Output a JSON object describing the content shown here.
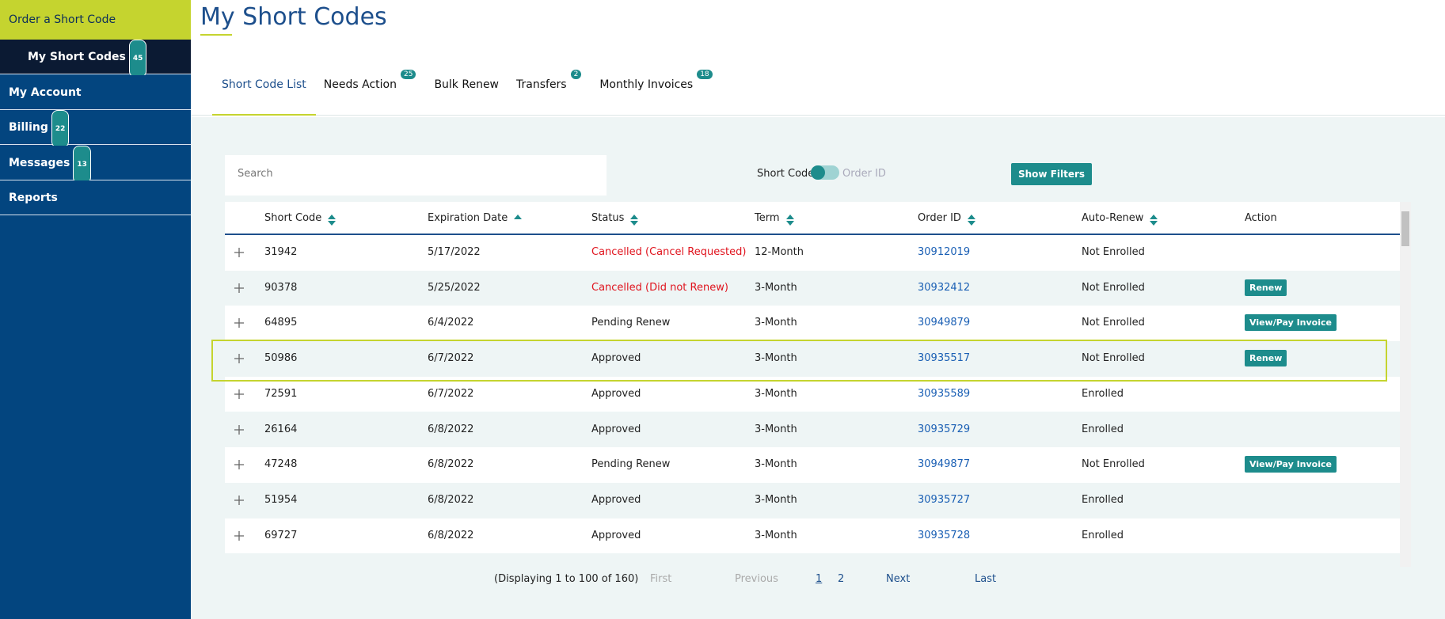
{
  "sidebar": {
    "order_button": "Order a Short Code",
    "items": [
      {
        "label": "My Short Codes",
        "badge": "45",
        "active": true
      },
      {
        "label": "My Account"
      },
      {
        "label": "Billing",
        "badge": "22"
      },
      {
        "label": "Messages",
        "badge": "13"
      },
      {
        "label": "Reports"
      }
    ]
  },
  "header": {
    "title": "My Short Codes"
  },
  "tabs": [
    {
      "label": "Short Code List",
      "active": true
    },
    {
      "label": "Needs Action",
      "badge": "25"
    },
    {
      "label": "Bulk Renew"
    },
    {
      "label": "Transfers",
      "badge": "2"
    },
    {
      "label": "Monthly Invoices",
      "badge": "18"
    }
  ],
  "toolbar": {
    "search_placeholder": "Search",
    "toggle_left": "Short Code",
    "toggle_right": "Order ID",
    "filters_button": "Show Filters"
  },
  "table": {
    "columns": [
      "Short Code",
      "Expiration Date",
      "Status",
      "Term",
      "Order ID",
      "Auto-Renew",
      "Action"
    ],
    "rows": [
      {
        "short_code": "31942",
        "expiration": "5/17/2022",
        "status": "Cancelled (Cancel Requested)",
        "alert": true,
        "term": "12-Month",
        "order_id": "30912019",
        "auto_renew": "Not Enrolled"
      },
      {
        "short_code": "90378",
        "expiration": "5/25/2022",
        "status": "Cancelled (Did not Renew)",
        "alert": true,
        "term": "3-Month",
        "order_id": "30932412",
        "auto_renew": "Not Enrolled",
        "action": "Renew"
      },
      {
        "short_code": "64895",
        "expiration": "6/4/2022",
        "status": "Pending Renew",
        "term": "3-Month",
        "order_id": "30949879",
        "auto_renew": "Not Enrolled",
        "action": "View/Pay Invoice"
      },
      {
        "short_code": "50986",
        "expiration": "6/7/2022",
        "status": "Approved",
        "term": "3-Month",
        "order_id": "30935517",
        "auto_renew": "Not Enrolled",
        "action": "Renew",
        "selected": true
      },
      {
        "short_code": "72591",
        "expiration": "6/7/2022",
        "status": "Approved",
        "term": "3-Month",
        "order_id": "30935589",
        "auto_renew": "Enrolled"
      },
      {
        "short_code": "26164",
        "expiration": "6/8/2022",
        "status": "Approved",
        "term": "3-Month",
        "order_id": "30935729",
        "auto_renew": "Enrolled"
      },
      {
        "short_code": "47248",
        "expiration": "6/8/2022",
        "status": "Pending Renew",
        "term": "3-Month",
        "order_id": "30949877",
        "auto_renew": "Not Enrolled",
        "action": "View/Pay Invoice"
      },
      {
        "short_code": "51954",
        "expiration": "6/8/2022",
        "status": "Approved",
        "term": "3-Month",
        "order_id": "30935727",
        "auto_renew": "Enrolled"
      },
      {
        "short_code": "69727",
        "expiration": "6/8/2022",
        "status": "Approved",
        "term": "3-Month",
        "order_id": "30935728",
        "auto_renew": "Enrolled"
      }
    ]
  },
  "pagination": {
    "summary": "(Displaying 1 to 100 of 160)",
    "first": "First",
    "previous": "Previous",
    "pages": [
      "1",
      "2"
    ],
    "current": 0,
    "next": "Next",
    "last": "Last"
  }
}
